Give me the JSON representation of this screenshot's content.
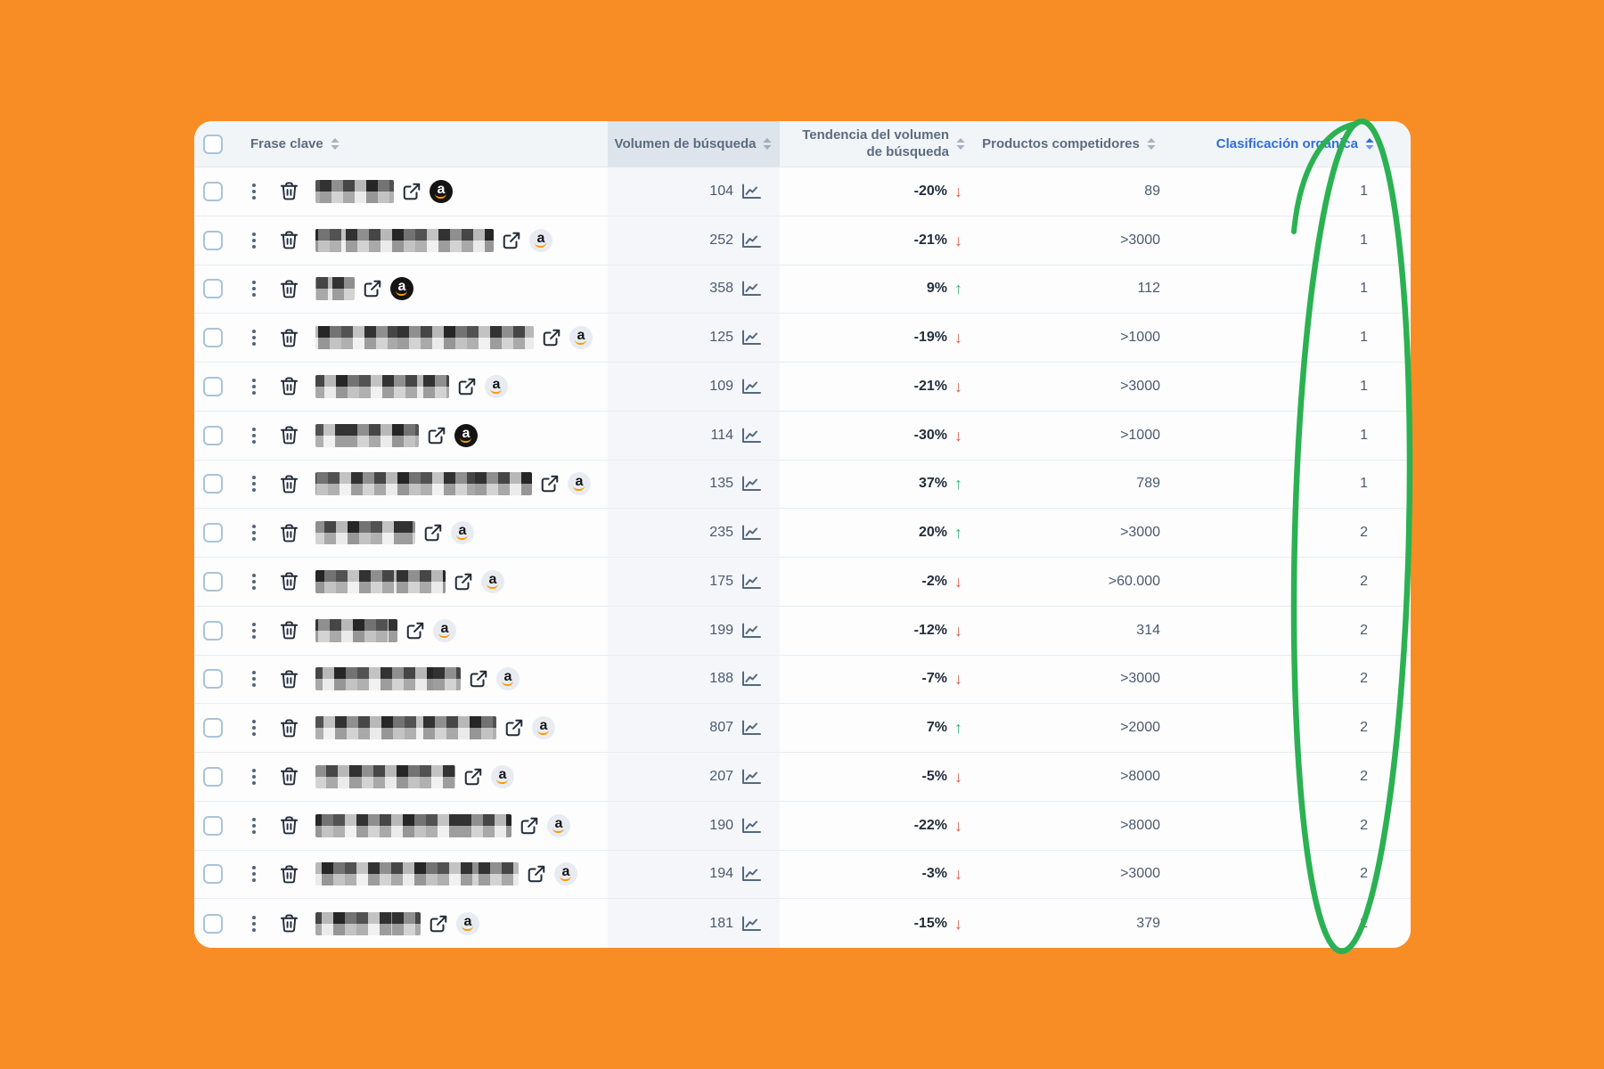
{
  "page": {
    "background_color": "#F98D25"
  },
  "annotation": {
    "shape": "hand-drawn-ellipse",
    "color": "#2BB152",
    "circled_column": "Clasificación orgánica"
  },
  "icons": {
    "sort": "double-triangle",
    "arrow_down": "↓",
    "arrow_up": "↑",
    "amazon_letter": "a",
    "colors": {
      "arrow_down": "#E25A40",
      "arrow_up": "#2EB578",
      "active_header": "#2F6FD8",
      "amazon_smile": "#FF9900"
    }
  },
  "table": {
    "columns": [
      {
        "key": "phrase",
        "label": "Frase clave",
        "sortable": true
      },
      {
        "key": "volume",
        "label": "Volumen de búsqueda",
        "sortable": true,
        "highlighted": true
      },
      {
        "key": "trend",
        "label": "Tendencia del volumen de búsqueda",
        "sortable": true
      },
      {
        "key": "competitors",
        "label": "Productos competidores",
        "sortable": true
      },
      {
        "key": "rank",
        "label": "Clasificación orgánica",
        "sortable": true,
        "active": true
      }
    ],
    "rows": [
      {
        "volume": "104",
        "trend": "-20%",
        "direction": "down",
        "competitors": "89",
        "rank": "1",
        "badge": "dark",
        "redact_width": 88
      },
      {
        "volume": "252",
        "trend": "-21%",
        "direction": "down",
        "competitors": ">3000",
        "rank": "1",
        "badge": "light",
        "redact_width": 200
      },
      {
        "volume": "358",
        "trend": "9%",
        "direction": "up",
        "competitors": "112",
        "rank": "1",
        "badge": "dark",
        "redact_width": 44
      },
      {
        "volume": "125",
        "trend": "-19%",
        "direction": "down",
        "competitors": ">1000",
        "rank": "1",
        "badge": "light",
        "redact_width": 245
      },
      {
        "volume": "109",
        "trend": "-21%",
        "direction": "down",
        "competitors": ">3000",
        "rank": "1",
        "badge": "light",
        "redact_width": 150
      },
      {
        "volume": "114",
        "trend": "-30%",
        "direction": "down",
        "competitors": ">1000",
        "rank": "1",
        "badge": "dark",
        "redact_width": 116
      },
      {
        "volume": "135",
        "trend": "37%",
        "direction": "up",
        "competitors": "789",
        "rank": "1",
        "badge": "light",
        "redact_width": 243
      },
      {
        "volume": "235",
        "trend": "20%",
        "direction": "up",
        "competitors": ">3000",
        "rank": "2",
        "badge": "light",
        "redact_width": 112
      },
      {
        "volume": "175",
        "trend": "-2%",
        "direction": "down",
        "competitors": ">60.000",
        "rank": "2",
        "badge": "light",
        "redact_width": 146
      },
      {
        "volume": "199",
        "trend": "-12%",
        "direction": "down",
        "competitors": "314",
        "rank": "2",
        "badge": "light",
        "redact_width": 92
      },
      {
        "volume": "188",
        "trend": "-7%",
        "direction": "down",
        "competitors": ">3000",
        "rank": "2",
        "badge": "light",
        "redact_width": 163
      },
      {
        "volume": "807",
        "trend": "7%",
        "direction": "up",
        "competitors": ">2000",
        "rank": "2",
        "badge": "light",
        "redact_width": 203
      },
      {
        "volume": "207",
        "trend": "-5%",
        "direction": "down",
        "competitors": ">8000",
        "rank": "2",
        "badge": "light",
        "redact_width": 157
      },
      {
        "volume": "190",
        "trend": "-22%",
        "direction": "down",
        "competitors": ">8000",
        "rank": "2",
        "badge": "light",
        "redact_width": 220
      },
      {
        "volume": "194",
        "trend": "-3%",
        "direction": "down",
        "competitors": ">3000",
        "rank": "2",
        "badge": "light",
        "redact_width": 228
      },
      {
        "volume": "181",
        "trend": "-15%",
        "direction": "down",
        "competitors": "379",
        "rank": "2",
        "badge": "light",
        "redact_width": 118
      }
    ]
  }
}
